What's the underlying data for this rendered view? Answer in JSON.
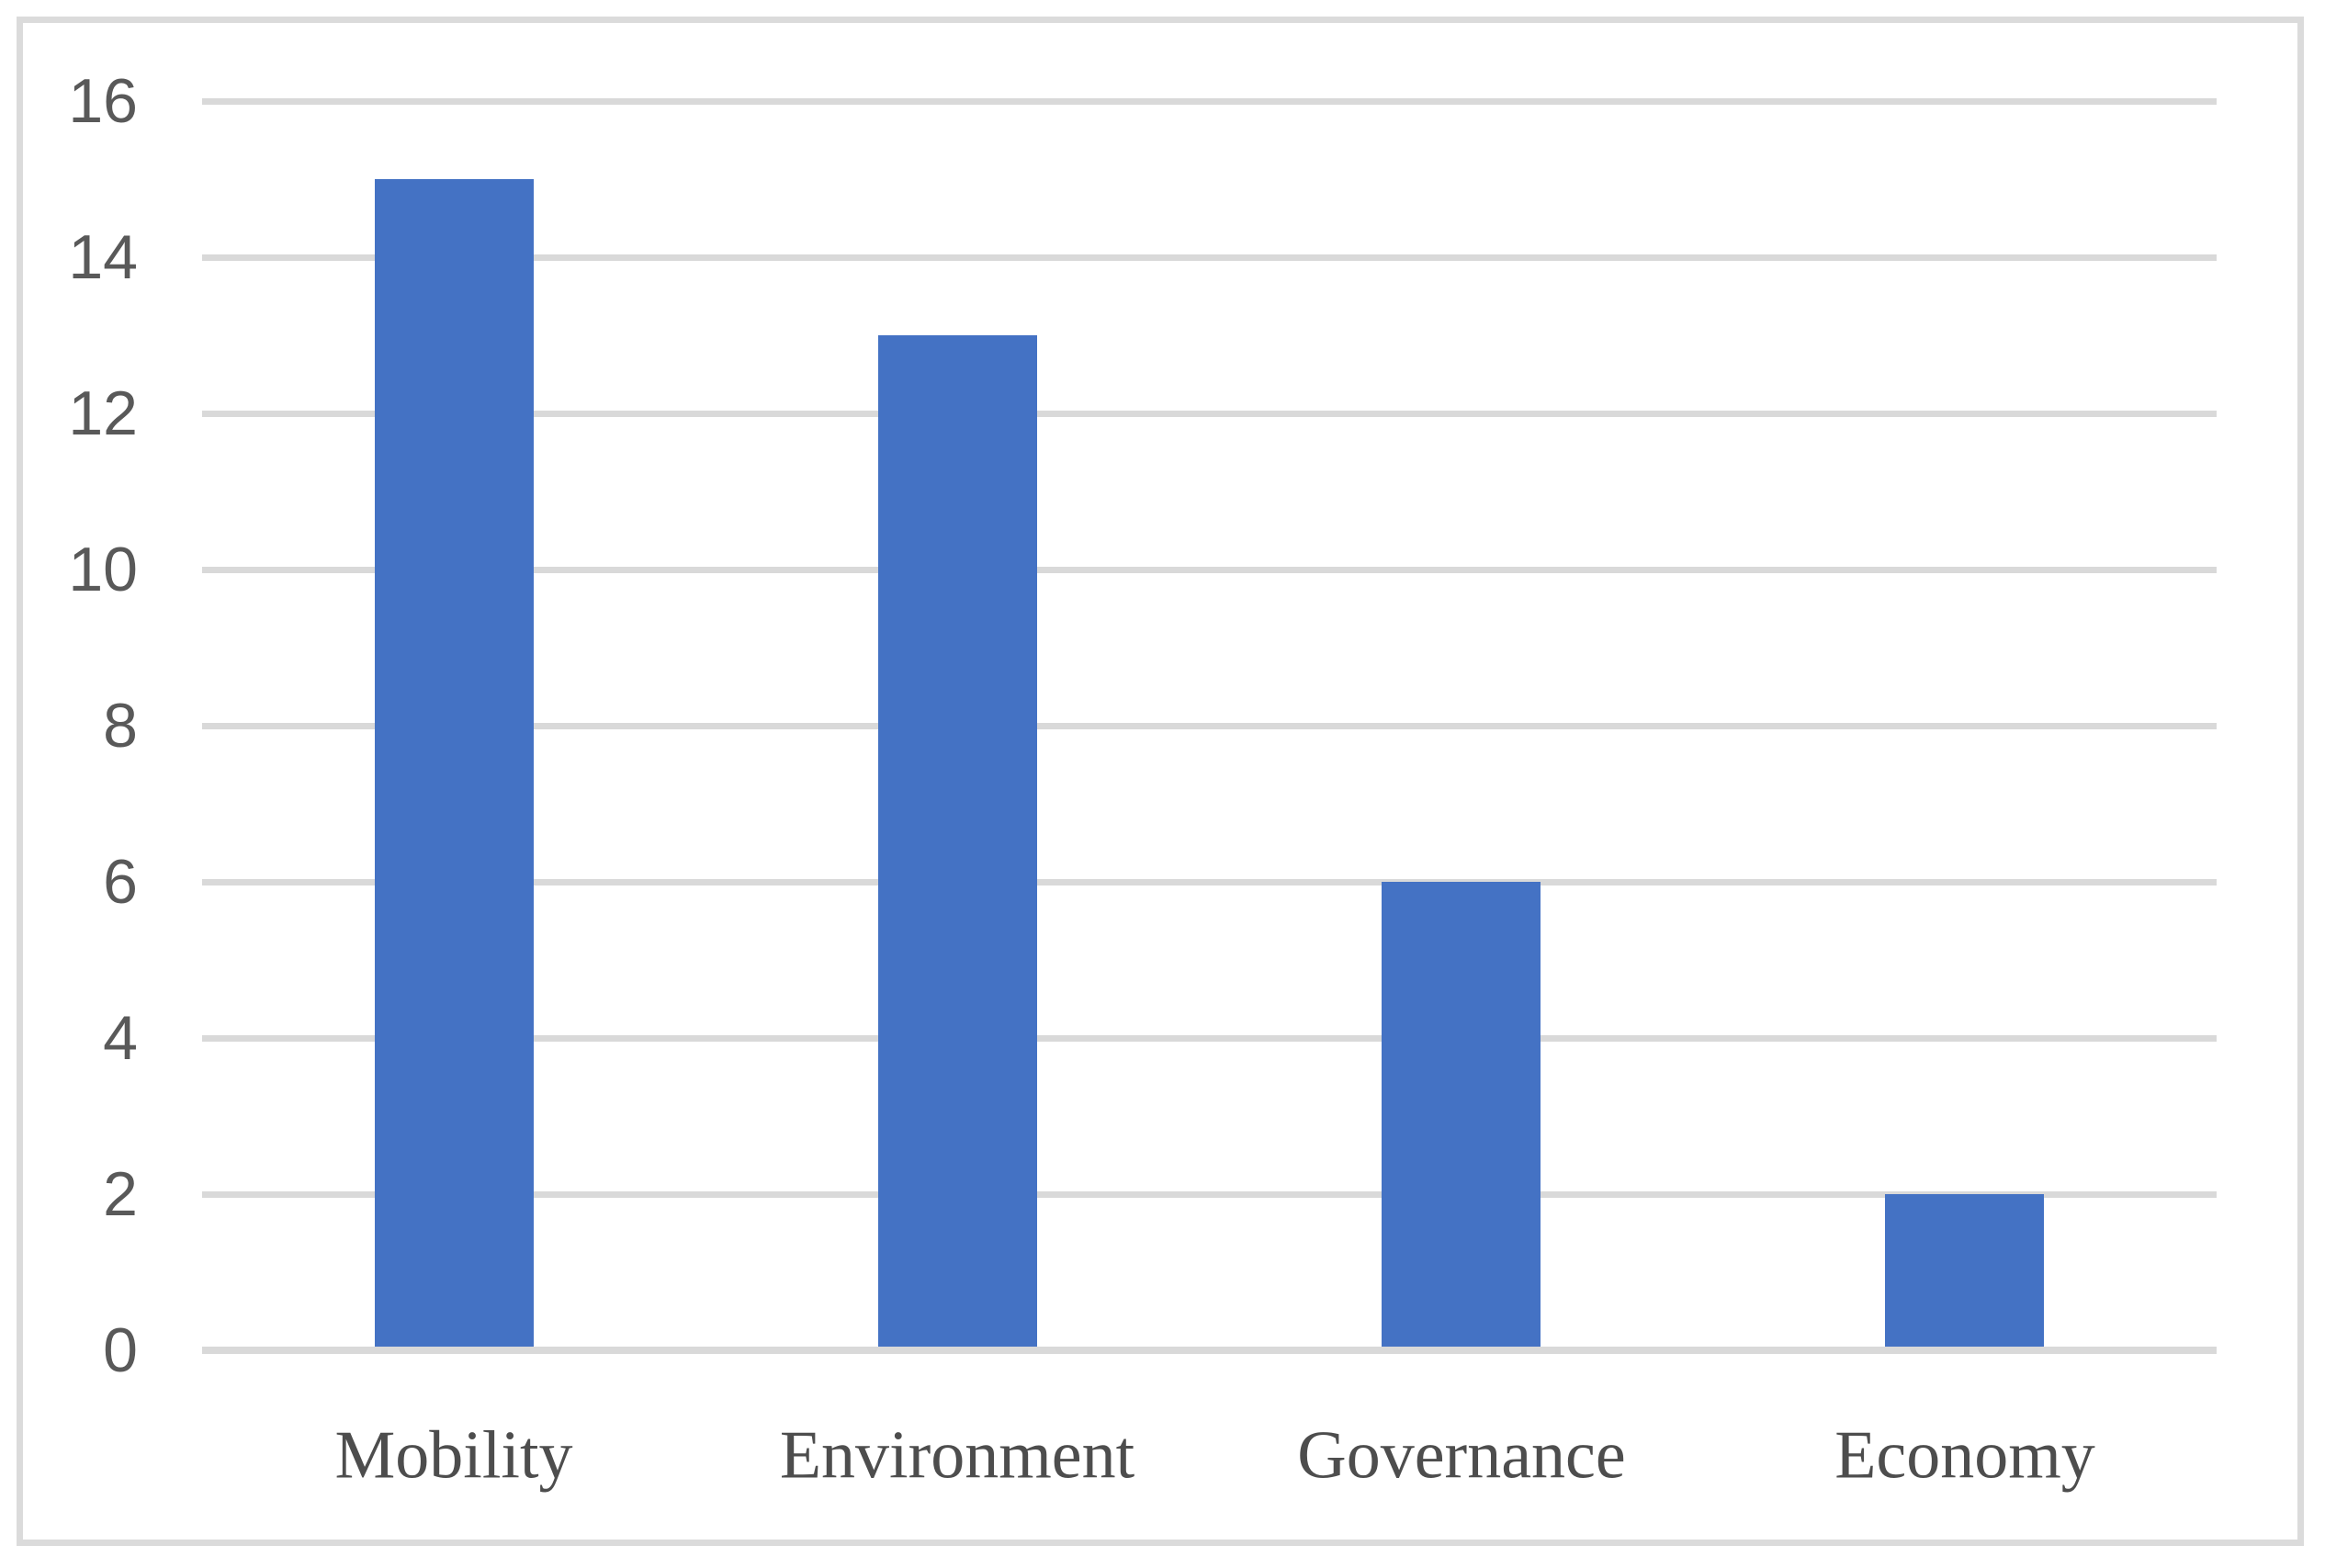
{
  "chart_data": {
    "type": "bar",
    "categories": [
      "Mobility",
      "Environment",
      "Governance",
      "Economy"
    ],
    "values": [
      15,
      13,
      6,
      2
    ],
    "title": "",
    "xlabel": "",
    "ylabel": "",
    "ylim": [
      0,
      16
    ],
    "yticks": [
      0,
      2,
      4,
      6,
      8,
      10,
      12,
      14,
      16
    ],
    "grid": true,
    "legend": false,
    "colors": {
      "bar": "#4472C4",
      "gridline": "#D9D9D9",
      "axis_line": "#D9D9D9",
      "tick_label": "#595959",
      "category_label": "#4D4D4D",
      "frame_border": "#DBDBDB",
      "background": "#FFFFFF"
    }
  }
}
